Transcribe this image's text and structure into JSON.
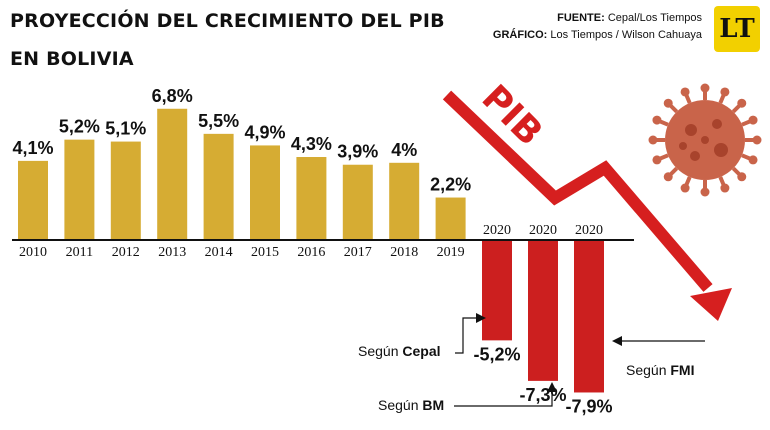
{
  "header": {
    "title_line1": "PROYECCIÓN DEL CRECIMIENTO DEL PIB",
    "title_line2": "EN BOLIVIA",
    "fuente_label": "FUENTE:",
    "fuente_value": "Cepal/Los Tiempos",
    "grafico_label": "GRÁFICO:",
    "grafico_value": "Los Tiempos / Wilson Cahuaya",
    "logo_text": "LT"
  },
  "chart_data": {
    "type": "bar",
    "categories": [
      "2010",
      "2011",
      "2012",
      "2013",
      "2014",
      "2015",
      "2016",
      "2017",
      "2018",
      "2019",
      "2020",
      "2020",
      "2020"
    ],
    "values": [
      4.1,
      5.2,
      5.1,
      6.8,
      5.5,
      4.9,
      4.3,
      3.9,
      4.0,
      2.2,
      -5.2,
      -7.3,
      -7.9
    ],
    "data_labels": [
      "4,1%",
      "5,2%",
      "5,1%",
      "6,8%",
      "5,5%",
      "4,9%",
      "4,3%",
      "3,9%",
      "4%",
      "2,2%",
      "-5,2%",
      "-7,3%",
      "-7,9%"
    ],
    "title": "PROYECCIÓN DEL CRECIMIENTO DEL PIB EN BOLIVIA",
    "colors": {
      "positive": "#d6ac33",
      "negative": "#cc1f1f",
      "arrow": "#d61f1f",
      "virus": "#c9644a"
    },
    "arrow_label": "PIB",
    "annotations": [
      {
        "prefix": "Según ",
        "source": "Cepal"
      },
      {
        "prefix": "Según ",
        "source": "BM"
      },
      {
        "prefix": "Según ",
        "source": "FMI"
      }
    ]
  }
}
